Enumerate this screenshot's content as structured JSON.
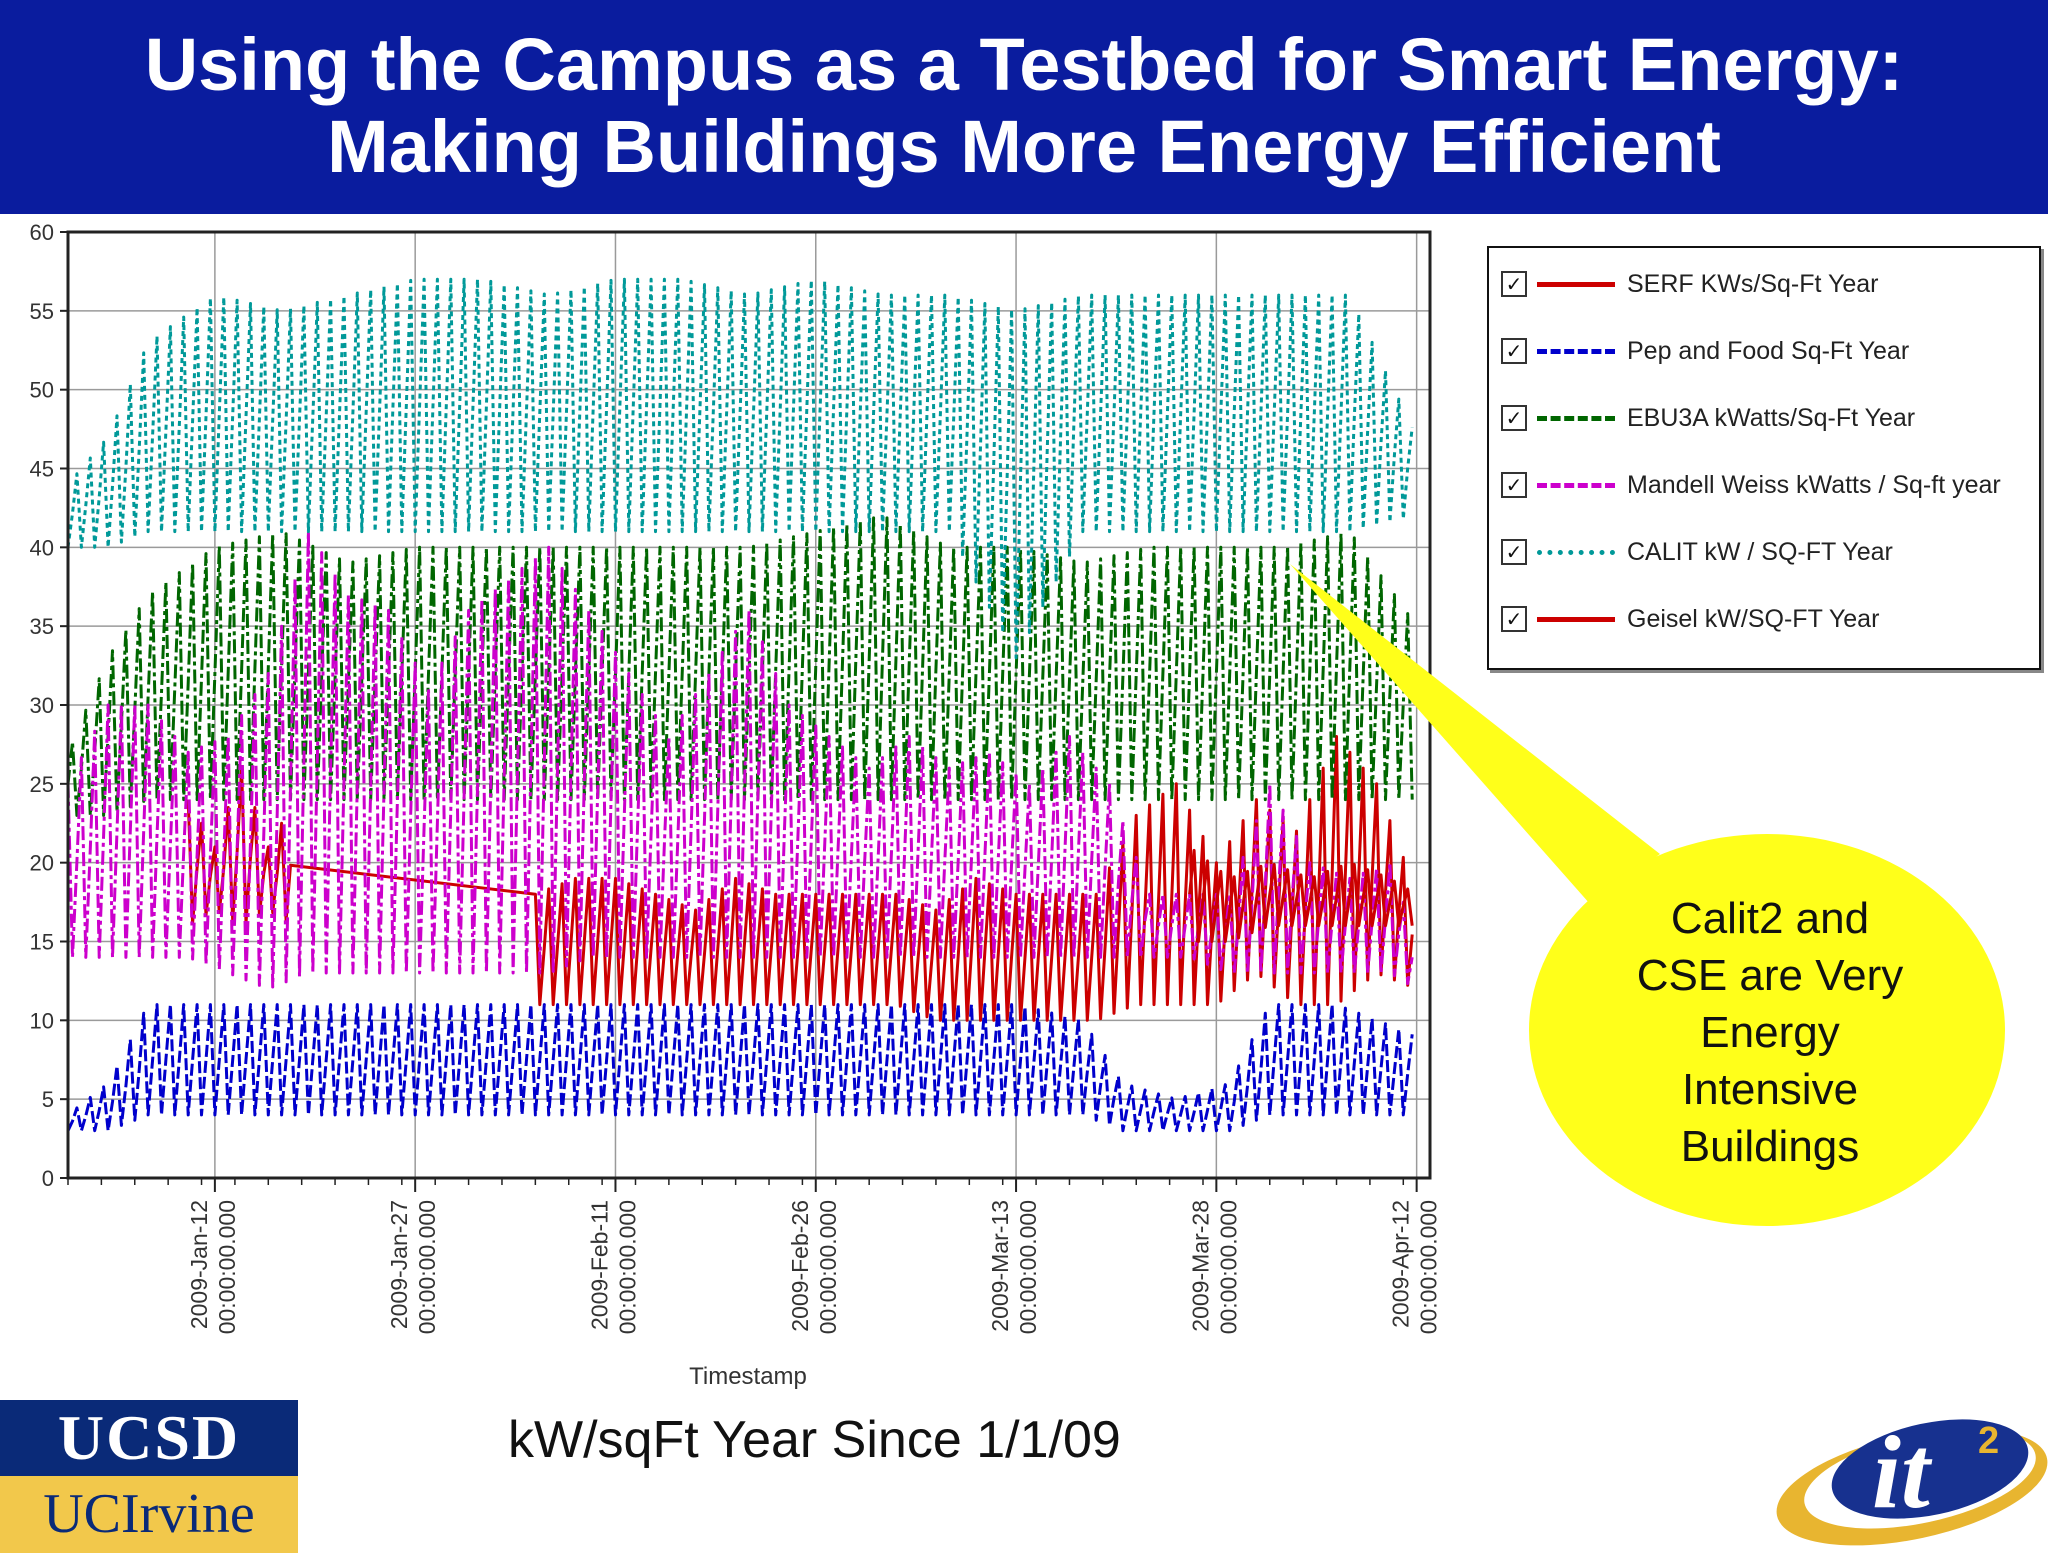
{
  "header": {
    "title_line_1": "Using the Campus as a Testbed for Smart Energy:",
    "title_line_2": "Making Buildings More Energy Efficient",
    "background_color": "#0a1c9e"
  },
  "chart_data": {
    "type": "line",
    "title": "",
    "xlabel": "Timestamp",
    "ylabel": "",
    "ylim": [
      0,
      60
    ],
    "yticks": [
      0,
      5,
      10,
      15,
      20,
      25,
      30,
      35,
      40,
      45,
      50,
      55,
      60
    ],
    "xlim": [
      "2009-01-01",
      "2009-04-13"
    ],
    "xticks": [
      {
        "date": "2009-01-12",
        "line1": "2009-Jan-12",
        "line2": "00:00:00.000"
      },
      {
        "date": "2009-01-27",
        "line1": "2009-Jan-27",
        "line2": "00:00:00.000"
      },
      {
        "date": "2009-02-11",
        "line1": "2009-Feb-11",
        "line2": "00:00:00.000"
      },
      {
        "date": "2009-02-26",
        "line1": "2009-Feb-26",
        "line2": "00:00:00.000"
      },
      {
        "date": "2009-03-13",
        "line1": "2009-Mar-13",
        "line2": "00:00:00.000"
      },
      {
        "date": "2009-03-28",
        "line1": "2009-Mar-28",
        "line2": "00:00:00.000"
      },
      {
        "date": "2009-04-12",
        "line1": "2009-Apr-12",
        "line2": "00:00:00.000"
      }
    ],
    "grid": true,
    "legend_position": "right",
    "series": [
      {
        "name": "SERF KWs/Sq-Ft Year",
        "color": "#cc0000",
        "dash": "solid",
        "daily": [
          {
            "date": "2009-01-10",
            "low": 16,
            "high": 24
          },
          {
            "date": "2009-01-12",
            "low": 17,
            "high": 21
          },
          {
            "date": "2009-01-14",
            "low": 16,
            "high": 26
          },
          {
            "date": "2009-01-16",
            "low": 17,
            "high": 21
          },
          {
            "date": "2009-01-18",
            "low": 16,
            "high": 24
          },
          {
            "date": "2009-02-05",
            "low": 11,
            "high": 18
          },
          {
            "date": "2009-02-08",
            "low": 11,
            "high": 19
          },
          {
            "date": "2009-02-11",
            "low": 11,
            "high": 19
          },
          {
            "date": "2009-02-14",
            "low": 11,
            "high": 18
          },
          {
            "date": "2009-02-17",
            "low": 11,
            "high": 17
          },
          {
            "date": "2009-02-20",
            "low": 11,
            "high": 19
          },
          {
            "date": "2009-02-23",
            "low": 11,
            "high": 18
          },
          {
            "date": "2009-02-26",
            "low": 11,
            "high": 18
          },
          {
            "date": "2009-03-01",
            "low": 11,
            "high": 18
          },
          {
            "date": "2009-03-04",
            "low": 11,
            "high": 18
          },
          {
            "date": "2009-03-07",
            "low": 10,
            "high": 17
          },
          {
            "date": "2009-03-10",
            "low": 10,
            "high": 19
          },
          {
            "date": "2009-03-13",
            "low": 10,
            "high": 18
          },
          {
            "date": "2009-03-16",
            "low": 10,
            "high": 18
          },
          {
            "date": "2009-03-19",
            "low": 10,
            "high": 18
          },
          {
            "date": "2009-03-22",
            "low": 11,
            "high": 23
          },
          {
            "date": "2009-03-25",
            "low": 11,
            "high": 25
          },
          {
            "date": "2009-03-28",
            "low": 11,
            "high": 20
          },
          {
            "date": "2009-03-31",
            "low": 13,
            "high": 24
          },
          {
            "date": "2009-04-03",
            "low": 11,
            "high": 22
          },
          {
            "date": "2009-04-06",
            "low": 11,
            "high": 28
          },
          {
            "date": "2009-04-09",
            "low": 13,
            "high": 25
          },
          {
            "date": "2009-04-12",
            "low": 12,
            "high": 18
          }
        ]
      },
      {
        "name": "Pep and Food Sq-Ft Year",
        "color": "#0000cc",
        "dash": "dashed",
        "daily": [
          {
            "date": "2009-01-01",
            "low": 3,
            "high": 4
          },
          {
            "date": "2009-01-04",
            "low": 3,
            "high": 6
          },
          {
            "date": "2009-01-07",
            "low": 4,
            "high": 11
          },
          {
            "date": "2009-01-12",
            "low": 4,
            "high": 11
          },
          {
            "date": "2009-01-17",
            "low": 4,
            "high": 11
          },
          {
            "date": "2009-01-22",
            "low": 4,
            "high": 11
          },
          {
            "date": "2009-01-27",
            "low": 4,
            "high": 11
          },
          {
            "date": "2009-02-01",
            "low": 4,
            "high": 11
          },
          {
            "date": "2009-02-06",
            "low": 4,
            "high": 11
          },
          {
            "date": "2009-02-11",
            "low": 4,
            "high": 11
          },
          {
            "date": "2009-02-16",
            "low": 4,
            "high": 11
          },
          {
            "date": "2009-02-21",
            "low": 4,
            "high": 11
          },
          {
            "date": "2009-02-26",
            "low": 4,
            "high": 11
          },
          {
            "date": "2009-03-03",
            "low": 4,
            "high": 11
          },
          {
            "date": "2009-03-08",
            "low": 4,
            "high": 11
          },
          {
            "date": "2009-03-13",
            "low": 4,
            "high": 11
          },
          {
            "date": "2009-03-18",
            "low": 4,
            "high": 10
          },
          {
            "date": "2009-03-21",
            "low": 3,
            "high": 6
          },
          {
            "date": "2009-03-25",
            "low": 3,
            "high": 5
          },
          {
            "date": "2009-03-29",
            "low": 3,
            "high": 6
          },
          {
            "date": "2009-04-01",
            "low": 4,
            "high": 11
          },
          {
            "date": "2009-04-06",
            "low": 4,
            "high": 11
          },
          {
            "date": "2009-04-12",
            "low": 4,
            "high": 9
          }
        ]
      },
      {
        "name": "EBU3A kWatts/Sq-Ft Year",
        "color": "#006600",
        "dash": "dash-dot",
        "daily": [
          {
            "date": "2009-01-01",
            "low": 23,
            "high": 27
          },
          {
            "date": "2009-01-04",
            "low": 23,
            "high": 33
          },
          {
            "date": "2009-01-07",
            "low": 24,
            "high": 37
          },
          {
            "date": "2009-01-12",
            "low": 24,
            "high": 40
          },
          {
            "date": "2009-01-17",
            "low": 24,
            "high": 41
          },
          {
            "date": "2009-01-22",
            "low": 24,
            "high": 39
          },
          {
            "date": "2009-01-27",
            "low": 24,
            "high": 40
          },
          {
            "date": "2009-02-01",
            "low": 24,
            "high": 40
          },
          {
            "date": "2009-02-06",
            "low": 24,
            "high": 40
          },
          {
            "date": "2009-02-11",
            "low": 24,
            "high": 40
          },
          {
            "date": "2009-02-16",
            "low": 24,
            "high": 40
          },
          {
            "date": "2009-02-21",
            "low": 24,
            "high": 40
          },
          {
            "date": "2009-02-26",
            "low": 24,
            "high": 41
          },
          {
            "date": "2009-03-03",
            "low": 24,
            "high": 42
          },
          {
            "date": "2009-03-08",
            "low": 24,
            "high": 40
          },
          {
            "date": "2009-03-13",
            "low": 24,
            "high": 40
          },
          {
            "date": "2009-03-18",
            "low": 24,
            "high": 39
          },
          {
            "date": "2009-03-23",
            "low": 24,
            "high": 40
          },
          {
            "date": "2009-03-28",
            "low": 24,
            "high": 40
          },
          {
            "date": "2009-04-02",
            "low": 24,
            "high": 40
          },
          {
            "date": "2009-04-07",
            "low": 24,
            "high": 41
          },
          {
            "date": "2009-04-12",
            "low": 24,
            "high": 35
          }
        ]
      },
      {
        "name": "Mandell Weiss kWatts / Sq-ft year",
        "color": "#cc00cc",
        "dash": "dash-dot",
        "daily": [
          {
            "date": "2009-01-01",
            "low": 14,
            "high": 25
          },
          {
            "date": "2009-01-04",
            "low": 14,
            "high": 30
          },
          {
            "date": "2009-01-07",
            "low": 14,
            "high": 30
          },
          {
            "date": "2009-01-10",
            "low": 14,
            "high": 27
          },
          {
            "date": "2009-01-13",
            "low": 13,
            "high": 28
          },
          {
            "date": "2009-01-16",
            "low": 12,
            "high": 32
          },
          {
            "date": "2009-01-19",
            "low": 13,
            "high": 41
          },
          {
            "date": "2009-01-22",
            "low": 13,
            "high": 37
          },
          {
            "date": "2009-01-25",
            "low": 13,
            "high": 36
          },
          {
            "date": "2009-01-28",
            "low": 13,
            "high": 31
          },
          {
            "date": "2009-01-31",
            "low": 13,
            "high": 36
          },
          {
            "date": "2009-02-03",
            "low": 13,
            "high": 38
          },
          {
            "date": "2009-02-06",
            "low": 13,
            "high": 40
          },
          {
            "date": "2009-02-09",
            "low": 14,
            "high": 36
          },
          {
            "date": "2009-02-12",
            "low": 14,
            "high": 32
          },
          {
            "date": "2009-02-15",
            "low": 14,
            "high": 28
          },
          {
            "date": "2009-02-18",
            "low": 14,
            "high": 32
          },
          {
            "date": "2009-02-21",
            "low": 14,
            "high": 36
          },
          {
            "date": "2009-02-24",
            "low": 14,
            "high": 30
          },
          {
            "date": "2009-02-27",
            "low": 14,
            "high": 28
          },
          {
            "date": "2009-03-02",
            "low": 14,
            "high": 26
          },
          {
            "date": "2009-03-05",
            "low": 14,
            "high": 28
          },
          {
            "date": "2009-03-08",
            "low": 14,
            "high": 26
          },
          {
            "date": "2009-03-11",
            "low": 14,
            "high": 27
          },
          {
            "date": "2009-03-14",
            "low": 14,
            "high": 25
          },
          {
            "date": "2009-03-17",
            "low": 14,
            "high": 28
          },
          {
            "date": "2009-03-20",
            "low": 14,
            "high": 25
          },
          {
            "date": "2009-03-23",
            "low": 14,
            "high": 18
          },
          {
            "date": "2009-03-26",
            "low": 14,
            "high": 18
          },
          {
            "date": "2009-03-29",
            "low": 13,
            "high": 18
          },
          {
            "date": "2009-04-01",
            "low": 13,
            "high": 25
          },
          {
            "date": "2009-04-04",
            "low": 13,
            "high": 20
          },
          {
            "date": "2009-04-07",
            "low": 13,
            "high": 19
          },
          {
            "date": "2009-04-10",
            "low": 13,
            "high": 20
          },
          {
            "date": "2009-04-12",
            "low": 12,
            "high": 15
          }
        ]
      },
      {
        "name": "CALIT kW / SQ-FT Year",
        "color": "#009999",
        "dash": "dotted",
        "daily": [
          {
            "date": "2009-01-01",
            "low": 40,
            "high": 44
          },
          {
            "date": "2009-01-04",
            "low": 40,
            "high": 47
          },
          {
            "date": "2009-01-07",
            "low": 41,
            "high": 53
          },
          {
            "date": "2009-01-12",
            "low": 41,
            "high": 56
          },
          {
            "date": "2009-01-17",
            "low": 41,
            "high": 55
          },
          {
            "date": "2009-01-22",
            "low": 41,
            "high": 56
          },
          {
            "date": "2009-01-27",
            "low": 41,
            "high": 57
          },
          {
            "date": "2009-02-01",
            "low": 41,
            "high": 57
          },
          {
            "date": "2009-02-06",
            "low": 41,
            "high": 56
          },
          {
            "date": "2009-02-11",
            "low": 41,
            "high": 57
          },
          {
            "date": "2009-02-16",
            "low": 41,
            "high": 57
          },
          {
            "date": "2009-02-21",
            "low": 41,
            "high": 56
          },
          {
            "date": "2009-02-26",
            "low": 41,
            "high": 57
          },
          {
            "date": "2009-03-03",
            "low": 41,
            "high": 56
          },
          {
            "date": "2009-03-08",
            "low": 41,
            "high": 56
          },
          {
            "date": "2009-03-13",
            "low": 33,
            "high": 55
          },
          {
            "date": "2009-03-18",
            "low": 41,
            "high": 56
          },
          {
            "date": "2009-03-23",
            "low": 41,
            "high": 56
          },
          {
            "date": "2009-03-28",
            "low": 41,
            "high": 56
          },
          {
            "date": "2009-04-02",
            "low": 41,
            "high": 56
          },
          {
            "date": "2009-04-07",
            "low": 41,
            "high": 56
          },
          {
            "date": "2009-04-12",
            "low": 42,
            "high": 47
          }
        ]
      },
      {
        "name": "Geisel kW/SQ-FT Year",
        "color": "#cc0000",
        "dash": "solid",
        "daily": [
          {
            "date": "2009-03-26",
            "low": 15,
            "high": 21
          },
          {
            "date": "2009-03-29",
            "low": 15,
            "high": 19
          },
          {
            "date": "2009-04-01",
            "low": 16,
            "high": 20
          },
          {
            "date": "2009-04-04",
            "low": 16,
            "high": 19
          },
          {
            "date": "2009-04-07",
            "low": 16,
            "high": 20
          },
          {
            "date": "2009-04-10",
            "low": 16,
            "high": 19
          },
          {
            "date": "2009-04-12",
            "low": 16,
            "high": 18
          }
        ]
      }
    ]
  },
  "legend": {
    "items": [
      {
        "label": "SERF KWs/Sq-Ft Year",
        "color": "#cc0000",
        "style": "solid",
        "checked": true
      },
      {
        "label": "Pep and Food Sq-Ft Year",
        "color": "#0000cc",
        "style": "dashed",
        "checked": true
      },
      {
        "label": "EBU3A kWatts/Sq-Ft Year",
        "color": "#006600",
        "style": "dashed",
        "checked": true
      },
      {
        "label": "Mandell Weiss kWatts / Sq-ft year",
        "color": "#cc00cc",
        "style": "dashed",
        "checked": true
      },
      {
        "label": "CALIT kW / SQ-FT Year",
        "color": "#009999",
        "style": "dotted",
        "checked": true
      },
      {
        "label": "Geisel kW/SQ-FT Year",
        "color": "#cc0000",
        "style": "solid",
        "checked": true
      }
    ],
    "check_mark": "✓"
  },
  "callout": {
    "lines": [
      "Calit2 and",
      "CSE are Very",
      "Energy",
      "Intensive",
      "Buildings"
    ],
    "color": "#ffff1a"
  },
  "footer": {
    "caption": "kW/sqFt Year Since 1/1/09"
  },
  "logos": {
    "ucsd_text": "UCSD",
    "uci_text": "UCIrvine",
    "it2_text": "it",
    "it2_superscript": "2"
  }
}
